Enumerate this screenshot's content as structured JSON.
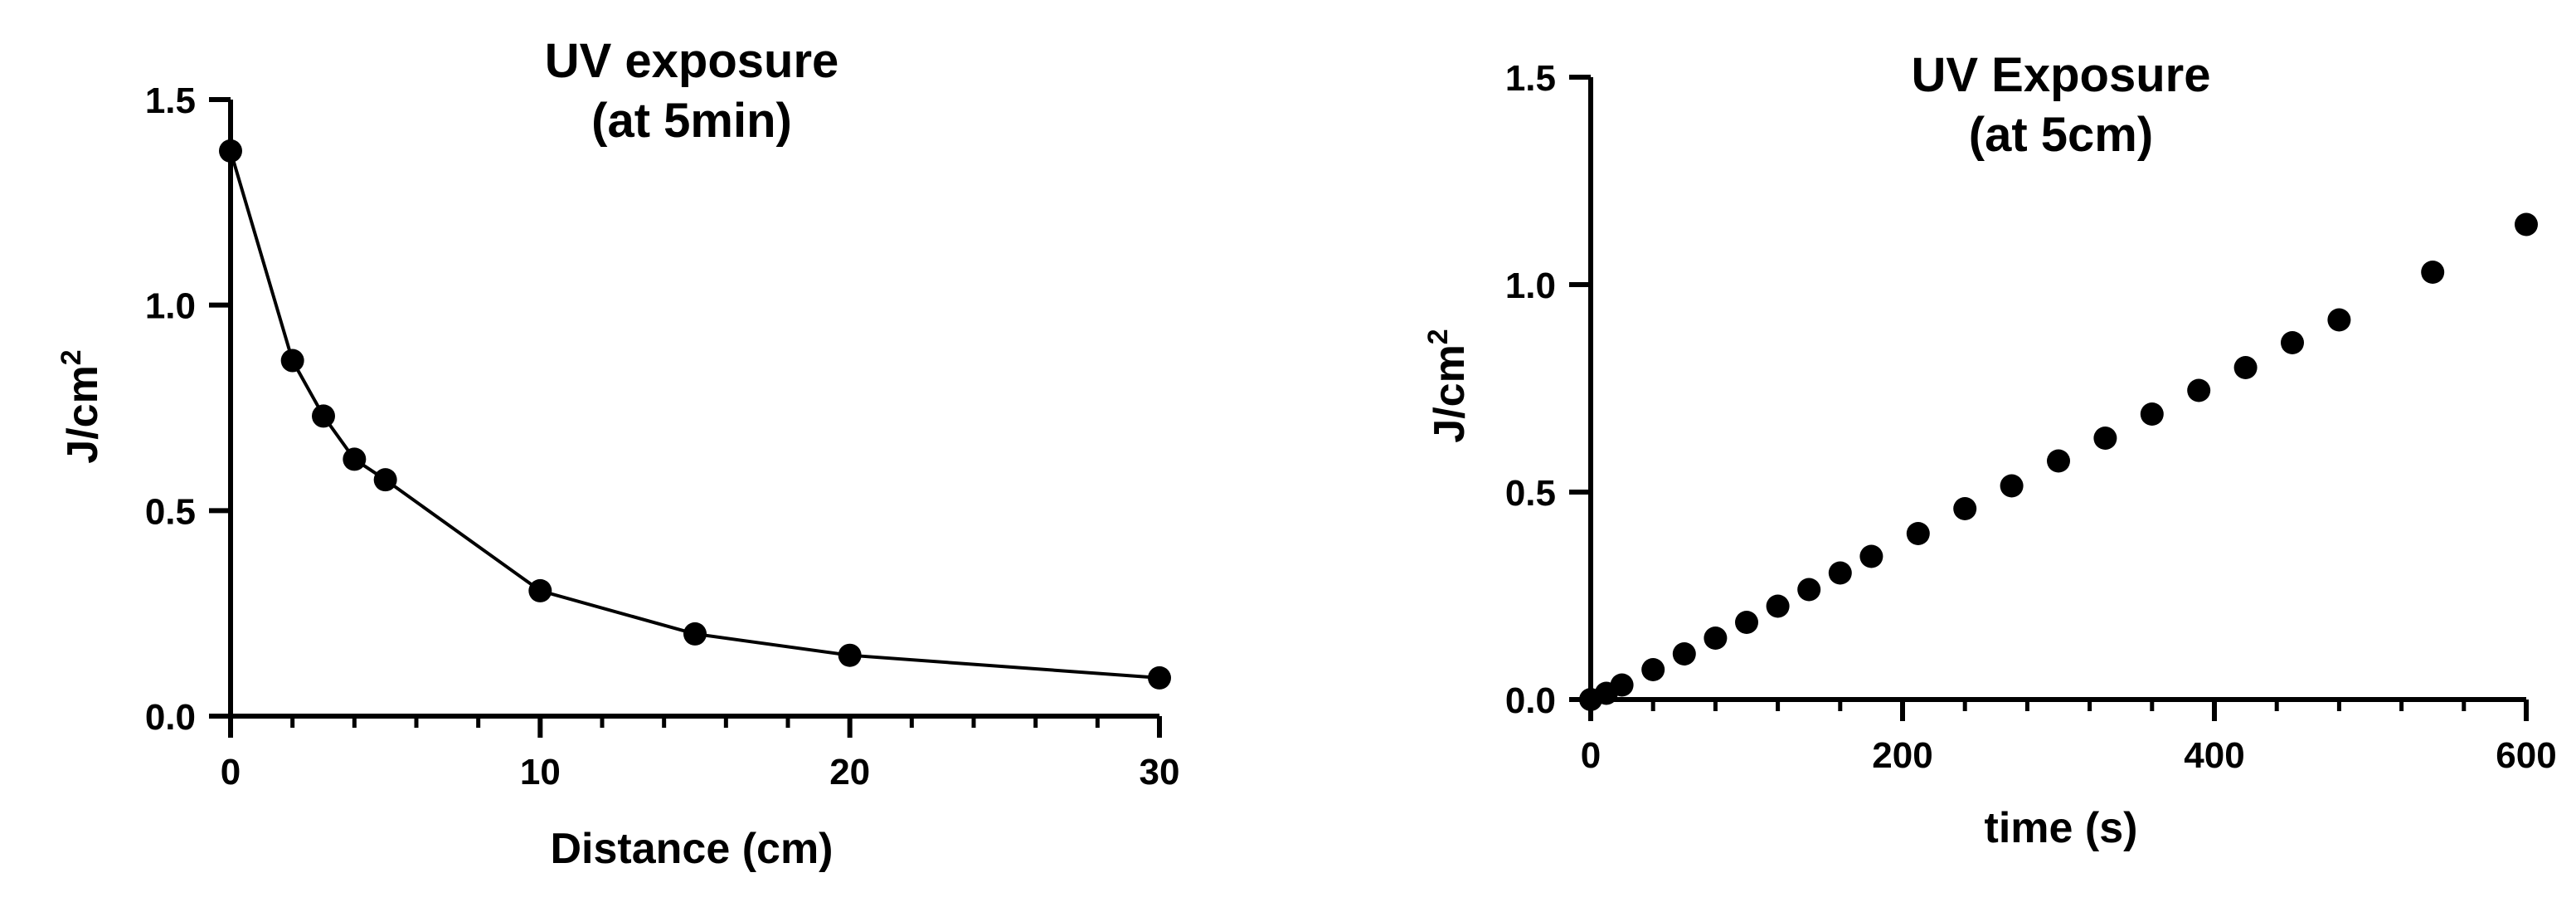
{
  "chart_data": [
    {
      "type": "line",
      "title": [
        "UV exposure",
        "(at 5min)"
      ],
      "xlabel": "Distance (cm)",
      "ylabel": {
        "base": "J/cm",
        "sup": "2"
      },
      "xlim": [
        0,
        30
      ],
      "ylim": [
        0,
        1.5
      ],
      "xticks": [
        "0",
        "10",
        "20",
        "30"
      ],
      "yticks": [
        "0.0",
        "0.5",
        "1.0",
        "1.5"
      ],
      "grid": false,
      "series": [
        {
          "x": [
            0,
            2,
            3,
            4,
            5,
            10,
            15,
            20,
            30
          ],
          "y": [
            1.375,
            0.865,
            0.73,
            0.625,
            0.575,
            0.305,
            0.2,
            0.148,
            0.093
          ]
        }
      ]
    },
    {
      "type": "scatter",
      "title": [
        "UV Exposure",
        "(at 5cm)"
      ],
      "xlabel": "time (s)",
      "ylabel": {
        "base": "J/cm",
        "sup": "2"
      },
      "xlim": [
        0,
        600
      ],
      "ylim": [
        0,
        1.5
      ],
      "xticks": [
        "0",
        "200",
        "400",
        "600"
      ],
      "yticks": [
        "0.0",
        "0.5",
        "1.0",
        "1.5"
      ],
      "grid": false,
      "series": [
        {
          "x": [
            0,
            10,
            20,
            40,
            60,
            80,
            100,
            120,
            140,
            160,
            180,
            210,
            240,
            270,
            300,
            330,
            360,
            390,
            420,
            450,
            480,
            540,
            600
          ],
          "y": [
            0.0,
            0.015,
            0.035,
            0.072,
            0.11,
            0.148,
            0.186,
            0.225,
            0.265,
            0.305,
            0.345,
            0.4,
            0.46,
            0.515,
            0.575,
            0.63,
            0.688,
            0.745,
            0.8,
            0.86,
            0.915,
            1.03,
            1.145
          ]
        }
      ]
    }
  ]
}
